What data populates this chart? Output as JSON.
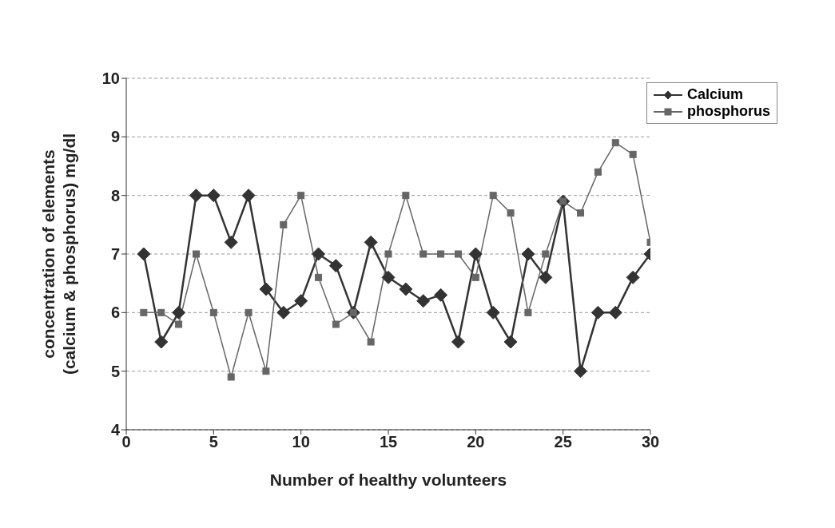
{
  "chart_data": {
    "type": "line",
    "xlabel": "Number of healthy volunteers",
    "ylabel": "concentration of elements\n(calcium & phosphorus) mg/dl",
    "x": [
      1,
      2,
      3,
      4,
      5,
      6,
      7,
      8,
      9,
      10,
      11,
      12,
      13,
      14,
      15,
      16,
      17,
      18,
      19,
      20,
      21,
      22,
      23,
      24,
      25,
      26,
      27,
      28,
      29,
      30
    ],
    "series": [
      {
        "name": "Calcium",
        "color": "#333333",
        "marker": "diamond",
        "values": [
          7,
          5.5,
          6,
          8,
          8,
          7.2,
          8,
          6.4,
          6,
          6.2,
          7,
          6.8,
          6,
          7.2,
          6.6,
          6.4,
          6.2,
          6.3,
          5.5,
          7,
          6,
          5.5,
          7,
          6.6,
          7.9,
          5,
          6,
          6,
          6.6,
          7
        ]
      },
      {
        "name": "phosphorus",
        "color": "#666666",
        "marker": "square",
        "values": [
          6,
          6,
          5.8,
          7,
          6,
          4.9,
          6,
          5,
          7.5,
          8,
          6.6,
          5.8,
          6,
          5.5,
          7,
          8,
          7,
          7,
          7,
          6.6,
          8,
          7.7,
          6,
          7,
          7.9,
          7.7,
          8.4,
          8.9,
          8.7,
          7.2
        ]
      }
    ],
    "xlim": [
      0,
      30
    ],
    "xticks": [
      0,
      5,
      10,
      15,
      20,
      25,
      30
    ],
    "ylim": [
      4,
      10
    ],
    "yticks": [
      4,
      5,
      6,
      7,
      8,
      9,
      10
    ],
    "grid": "y",
    "legend": "top right",
    "line_style": "solid"
  }
}
